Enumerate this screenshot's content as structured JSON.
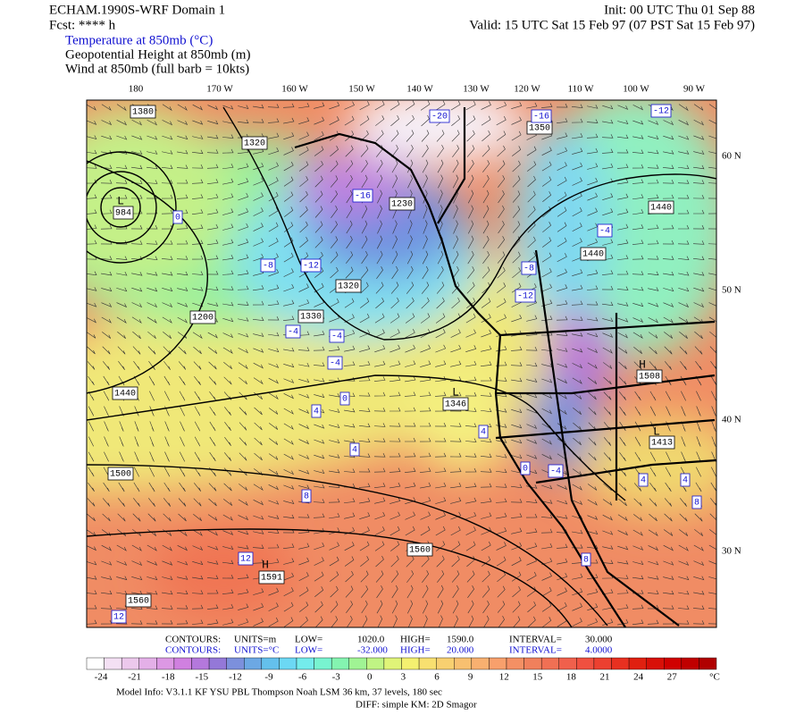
{
  "header": {
    "title": "ECHAM.1990S-WRF Domain 1",
    "forecast": "Fcst: **** h",
    "init": "Init: 00 UTC Thu 01 Sep 88",
    "valid": "Valid: 15 UTC Sat 15 Feb 97 (07 PST Sat 15 Feb 97)",
    "fields": [
      "Temperature at 850mb (°C)",
      "Geopotential Height at 850mb (m)",
      "Wind at 850mb (full barb = 10kts)"
    ]
  },
  "map": {
    "longitude_labels": [
      "180",
      "170 W",
      "160 W",
      "150 W",
      "140 W",
      "130 W",
      "120 W",
      "110 W",
      "100 W",
      "90 W"
    ],
    "latitude_labels": [
      "60 N",
      "50 N",
      "40 N",
      "30 N"
    ],
    "height_labels": [
      "1380",
      "1320",
      "1230",
      "1320",
      "1200",
      "1330",
      "1440",
      "1346",
      "1500",
      "1560",
      "1591",
      "1560",
      "1350",
      "1440",
      "1440",
      "1508",
      "1413",
      "984"
    ],
    "temperature_labels": [
      "-20",
      "-16",
      "-12",
      "-16",
      "-12",
      "-8",
      "-4",
      "-8",
      "-12",
      "-4",
      "-4",
      "-4",
      "0",
      "4",
      "4",
      "8",
      "12",
      "12",
      "0",
      "4",
      "0",
      "-4",
      "4",
      "4",
      "8",
      "8"
    ],
    "centers": [
      "L",
      "L",
      "H",
      "H",
      "L"
    ]
  },
  "contour_info": [
    [
      "CONTOURS:",
      "UNITS=m",
      "LOW=",
      "1020.0",
      "HIGH=",
      "1590.0",
      "INTERVAL=",
      "30.000"
    ],
    [
      "CONTOURS:",
      "UNITS=°C",
      "LOW=",
      "-32.000",
      "HIGH=",
      "20.000",
      "INTERVAL=",
      "4.0000"
    ]
  ],
  "colorbar": {
    "ticks": [
      -24,
      -21,
      -18,
      -15,
      -12,
      -9,
      -6,
      -3,
      0,
      3,
      6,
      9,
      12,
      15,
      18,
      21,
      24,
      27
    ],
    "unit": "°C",
    "colors": [
      "#ffffff",
      "#f4e0f4",
      "#ecc8ec",
      "#e4b0e8",
      "#dc98e4",
      "#d080e0",
      "#b478dc",
      "#9478d8",
      "#7c90dc",
      "#6ca8e4",
      "#64c0ec",
      "#6cd8f4",
      "#74ecec",
      "#78f4d0",
      "#84f4b0",
      "#a0f494",
      "#c0f484",
      "#e0f478",
      "#f4f070",
      "#f8e070",
      "#f8d070",
      "#f8c070",
      "#f8b070",
      "#f8a06c",
      "#f49064",
      "#f0805c",
      "#f07054",
      "#f0604c",
      "#f05040",
      "#ec4030",
      "#e83020",
      "#e02010",
      "#d81008",
      "#d00000",
      "#c00000",
      "#b00000"
    ]
  },
  "footer": [
    "Model Info: V3.1.1    KF     YSU PBL   Thompson     Noah LSM  36 km,    37 levels,  180 sec",
    "DIFF: simple KM: 2D Smagor"
  ]
}
